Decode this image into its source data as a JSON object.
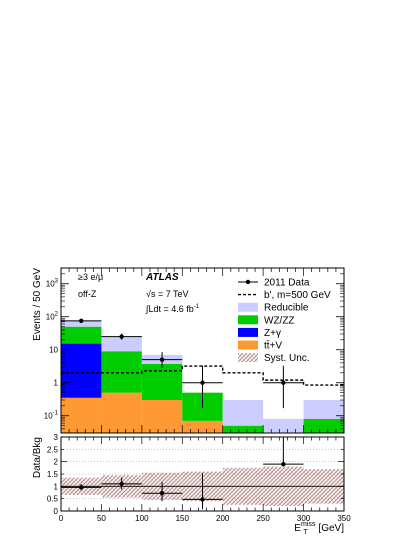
{
  "chart_data": [
    {
      "type": "bar",
      "stacked": true,
      "log_y": true,
      "ylabel": "Events / 50 GeV",
      "ylim": [
        0.03,
        3000
      ],
      "xlim": [
        0,
        350
      ],
      "bin_edges": [
        0,
        50,
        100,
        150,
        200,
        250,
        300,
        350
      ],
      "x_tick_labels": [
        "0",
        "50",
        "100",
        "150",
        "200",
        "250",
        "300",
        "350"
      ],
      "y_ticks": [
        {
          "value": 0.1,
          "base": "10",
          "exp": "-1"
        },
        {
          "value": 1,
          "base": "1",
          "exp": ""
        },
        {
          "value": 10,
          "base": "10",
          "exp": ""
        },
        {
          "value": 100,
          "base": "10",
          "exp": "2"
        },
        {
          "value": 1000,
          "base": "10",
          "exp": "3"
        }
      ],
      "labels": {
        "channel": "≥3 e/μ",
        "region": "off-Z",
        "experiment": "ATLAS",
        "energy": "√s = 7 TeV",
        "lumi_prefix": "∫Ldt = 4.6 fb",
        "lumi_exp": "-1"
      },
      "legend_position": "top-right",
      "legend": [
        {
          "label": "2011 Data",
          "kind": "data"
        },
        {
          "label": "b', m=500 GeV",
          "kind": "dashed"
        },
        {
          "label": "Reducible",
          "kind": "fill",
          "color": "#ccccff"
        },
        {
          "label": "WZ/ZZ",
          "kind": "fill",
          "color": "#00cc00"
        },
        {
          "label": "Z+γ",
          "kind": "fill",
          "color": "#0000ff"
        },
        {
          "label": "tt̄+V",
          "kind": "fill",
          "color": "#ff9933"
        },
        {
          "label": "Syst. Unc.",
          "kind": "hatch",
          "color": "#c8a0a0"
        }
      ],
      "series": [
        {
          "name": "tt̄+V",
          "color": "#ff9933",
          "values": [
            0.35,
            0.5,
            0.3,
            0.07,
            0.0,
            0.0,
            0.0
          ]
        },
        {
          "name": "Z+γ",
          "color": "#0000ff",
          "values": [
            15,
            0.0,
            0.0,
            0.0,
            0.0,
            0.0,
            0.0
          ]
        },
        {
          "name": "WZ/ZZ",
          "color": "#00cc00",
          "values": [
            34.65,
            8.5,
            3.4,
            0.43,
            0.05,
            0.0,
            0.08
          ]
        },
        {
          "name": "Reducible",
          "color": "#ccccff",
          "values": [
            28,
            15,
            3.3,
            0.0,
            0.25,
            0.08,
            0.22
          ]
        }
      ],
      "signal": {
        "name": "b', m=500 GeV",
        "values": [
          2.0,
          2.0,
          2.3,
          3.2,
          2.0,
          1.2,
          0.85
        ]
      },
      "data": {
        "name": "2011 Data",
        "x": [
          25,
          75,
          125,
          175,
          275
        ],
        "y": [
          75,
          25,
          5.0,
          1.0,
          1.0
        ],
        "yerr_low": [
          8.6,
          4.9,
          2.2,
          0.83,
          0.83
        ],
        "yerr_high": [
          9.7,
          6.0,
          3.4,
          2.3,
          2.3
        ]
      }
    },
    {
      "type": "scatter",
      "ylabel": "Data/Bkg",
      "xlabel": "E",
      "xlabel_sub": "T",
      "xlabel_sup": "miss",
      "xlabel_unit": " [GeV]",
      "xlim": [
        0,
        350
      ],
      "ylim": [
        0,
        3
      ],
      "y_tick_labels": [
        "0",
        "0.5",
        "1",
        "1.5",
        "2",
        "2.5",
        "3"
      ],
      "x_tick_labels": [
        "0",
        "50",
        "100",
        "150",
        "200",
        "250",
        "300",
        "350"
      ],
      "band_edges": [
        0,
        50,
        100,
        150,
        200,
        250,
        300,
        350
      ],
      "syst_band": [
        [
          0.65,
          1.35
        ],
        [
          0.55,
          1.45
        ],
        [
          0.45,
          1.55
        ],
        [
          0.4,
          1.6
        ],
        [
          0.25,
          1.75
        ],
        [
          0.2,
          1.8
        ],
        [
          0.3,
          1.7
        ]
      ],
      "ratio": {
        "x": [
          25,
          75,
          125,
          175,
          275
        ],
        "y": [
          0.96,
          1.1,
          0.72,
          0.47,
          1.9
        ],
        "err_low": [
          0.12,
          0.22,
          0.32,
          0.4,
          0.0
        ],
        "err_high": [
          0.13,
          0.26,
          0.45,
          1.08,
          1.1
        ]
      }
    }
  ]
}
